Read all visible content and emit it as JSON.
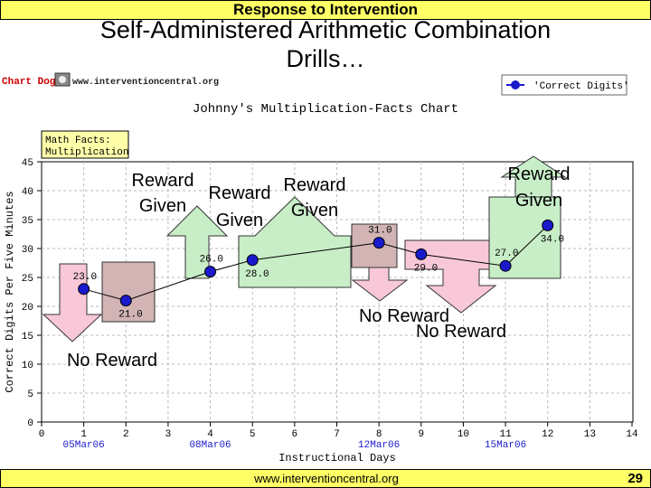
{
  "slide": {
    "banner": "Response to Intervention",
    "title_line1": "Self-Administered Arithmetic Combination",
    "title_line2": "Drills…",
    "footer_url": "www.interventioncentral.org",
    "page_number": "29"
  },
  "chart_header": {
    "brand": "Chart Dog!",
    "site": "www.interventioncentral.org"
  },
  "chart_data": {
    "type": "line",
    "title": "Johnny's Multiplication-Facts Chart",
    "subtitle_lines": [
      "Math Facts:",
      "Multiplication"
    ],
    "xlabel": "Instructional Days",
    "ylabel": "Correct Digits Per Five Minutes",
    "xlim": [
      0,
      14
    ],
    "ylim": [
      0,
      45
    ],
    "x_ticks": [
      0,
      1,
      2,
      3,
      4,
      5,
      6,
      7,
      8,
      9,
      10,
      11,
      12,
      13,
      14
    ],
    "y_ticks": [
      0,
      5,
      10,
      15,
      20,
      25,
      30,
      35,
      40,
      45
    ],
    "date_labels": [
      {
        "x": 1,
        "label": "05Mar06"
      },
      {
        "x": 4,
        "label": "08Mar06"
      },
      {
        "x": 8,
        "label": "12Mar06"
      },
      {
        "x": 11,
        "label": "15Mar06"
      }
    ],
    "legend_position": "top-right",
    "series": [
      {
        "name": "'Correct Digits'",
        "color": "#1a1acc",
        "x": [
          1,
          2,
          4,
          5,
          8,
          9,
          11,
          12
        ],
        "y": [
          23,
          21,
          26,
          28,
          31,
          29,
          27,
          34
        ],
        "labels": [
          "23.0",
          "21.0",
          "26.0",
          "28.0",
          "31.0",
          "29.0",
          "27.0",
          "34.0"
        ]
      }
    ],
    "annotations": [
      {
        "text": [
          "Reward",
          "Given"
        ]
      },
      {
        "text": [
          "Reward",
          "Given"
        ]
      },
      {
        "text": [
          "Reward",
          "Given"
        ]
      },
      {
        "text": [
          "Reward",
          "Given"
        ]
      },
      {
        "text": [
          "No Reward"
        ]
      },
      {
        "text": [
          "No Reward"
        ]
      },
      {
        "text": [
          "No Reward"
        ]
      }
    ],
    "colors": {
      "reward_fill": "#c8eec8",
      "no_reward_fill": "#f8c8d8",
      "box_fill": "#d2b4b4",
      "line": "#1a1acc",
      "label_box": "#ffffaa"
    }
  }
}
